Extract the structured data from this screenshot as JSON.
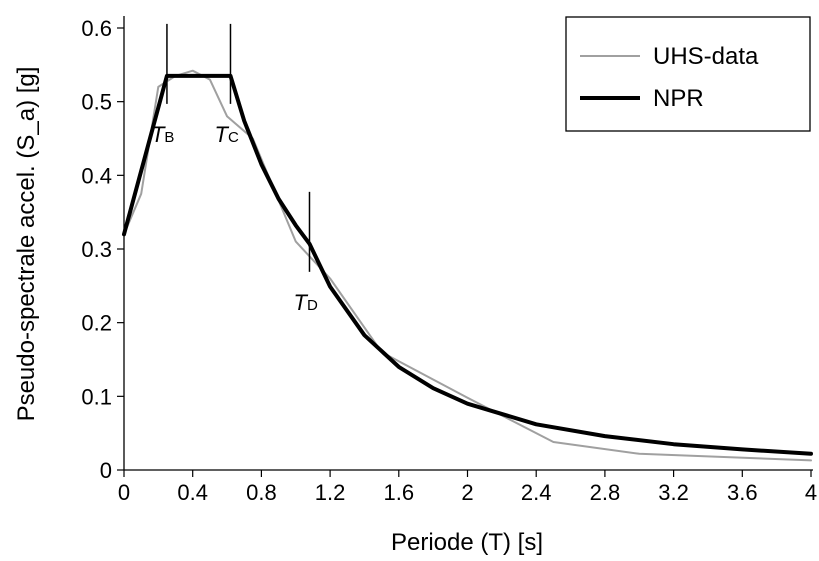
{
  "chart_data": {
    "type": "line",
    "xlabel": "Periode (T) [s]",
    "ylabel": "Pseudo-spectrale accel. (S_a) [g]",
    "xlim": [
      0,
      4
    ],
    "ylim": [
      0,
      0.6
    ],
    "x_ticks": [
      "0",
      "0.4",
      "0.8",
      "1.2",
      "1.6",
      "2",
      "2.4",
      "2.8",
      "3.2",
      "3.6",
      "4"
    ],
    "y_ticks": [
      "0",
      "0.1",
      "0.2",
      "0.3",
      "0.4",
      "0.5",
      "0.6"
    ],
    "grid": false,
    "legend_position": "top-right",
    "series": [
      {
        "name": "UHS-data",
        "color": "#a0a0a0",
        "x": [
          0,
          0.1,
          0.2,
          0.3,
          0.4,
          0.5,
          0.6,
          0.75,
          1.0,
          1.2,
          1.5,
          2.0,
          2.5,
          3.0,
          4.0
        ],
        "y": [
          0.32,
          0.375,
          0.52,
          0.535,
          0.542,
          0.53,
          0.48,
          0.45,
          0.31,
          0.26,
          0.16,
          0.098,
          0.038,
          0.022,
          0.013
        ]
      },
      {
        "name": "NPR",
        "color": "#000000",
        "x": [
          0,
          0.25,
          0.62,
          0.7,
          0.8,
          0.9,
          1.0,
          1.08,
          1.2,
          1.4,
          1.6,
          1.8,
          2.0,
          2.4,
          2.8,
          3.2,
          3.6,
          4.0
        ],
        "y": [
          0.32,
          0.535,
          0.535,
          0.474,
          0.415,
          0.368,
          0.332,
          0.307,
          0.249,
          0.183,
          0.14,
          0.111,
          0.09,
          0.062,
          0.046,
          0.035,
          0.028,
          0.022
        ]
      }
    ],
    "corner_periods": [
      {
        "label_main": "T",
        "label_sub": "B",
        "x": 0.25,
        "y": 0.535
      },
      {
        "label_main": "T",
        "label_sub": "C",
        "x": 0.62,
        "y": 0.535
      },
      {
        "label_main": "T",
        "label_sub": "D",
        "x": 1.08,
        "y": 0.307
      }
    ]
  }
}
